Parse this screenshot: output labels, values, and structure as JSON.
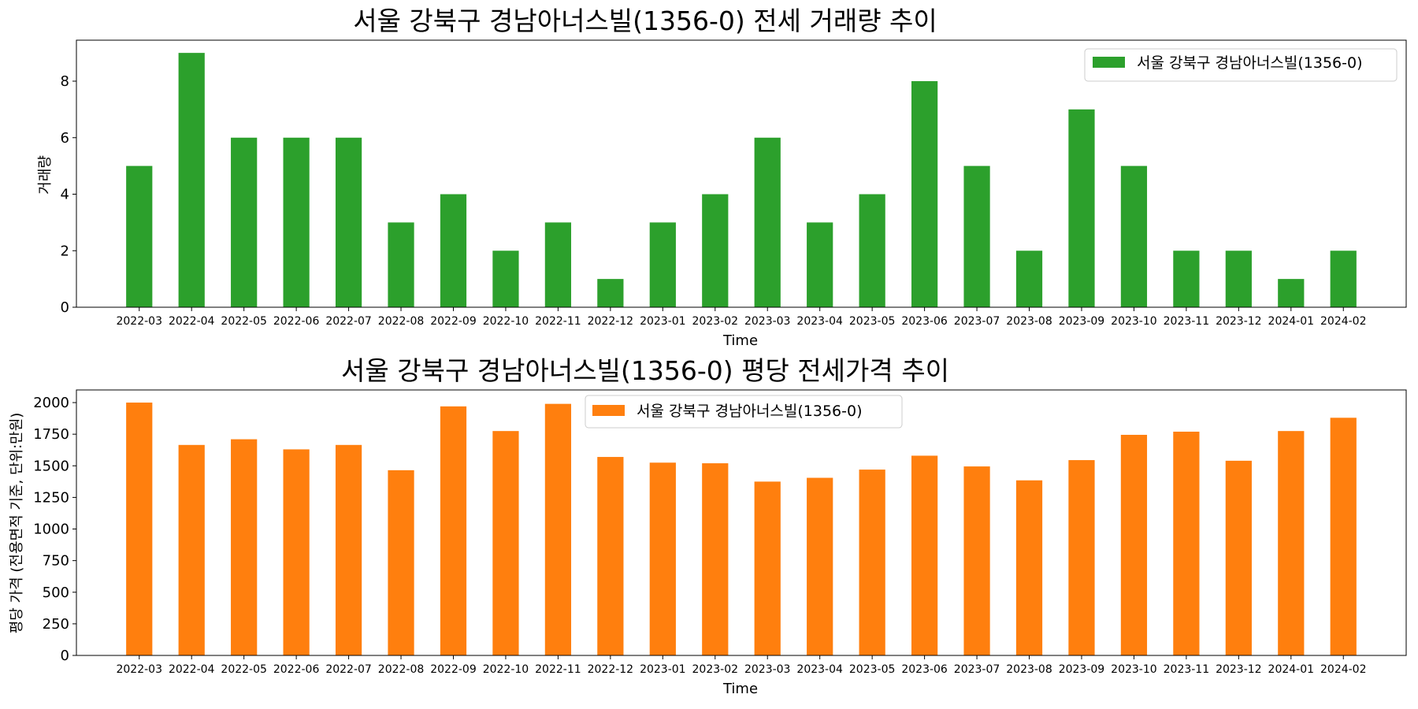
{
  "chart_data": [
    {
      "type": "bar",
      "title": "서울 강북구 경남아너스빌(1356-0) 전세 거래량 추이",
      "xlabel": "Time",
      "ylabel": "거래량",
      "ylim": [
        0,
        9.45
      ],
      "yticks": [
        0,
        2,
        4,
        6,
        8
      ],
      "legend_position": "upper right",
      "categories": [
        "2022-03",
        "2022-04",
        "2022-05",
        "2022-06",
        "2022-07",
        "2022-08",
        "2022-09",
        "2022-10",
        "2022-11",
        "2022-12",
        "2023-01",
        "2023-02",
        "2023-03",
        "2023-04",
        "2023-05",
        "2023-06",
        "2023-07",
        "2023-08",
        "2023-09",
        "2023-10",
        "2023-11",
        "2023-12",
        "2024-01",
        "2024-02"
      ],
      "series": [
        {
          "name": "서울 강북구 경남아너스빌(1356-0)",
          "color": "#2ca02c",
          "values": [
            5,
            9,
            6,
            6,
            6,
            3,
            4,
            2,
            3,
            1,
            3,
            4,
            6,
            3,
            4,
            8,
            5,
            2,
            7,
            5,
            2,
            2,
            1,
            2
          ]
        }
      ]
    },
    {
      "type": "bar",
      "title": "서울 강북구 경남아너스빌(1356-0) 평당 전세가격 추이",
      "xlabel": "Time",
      "ylabel": "평당 가격 (전용면적 기준, 단위:만원)",
      "ylim": [
        0,
        2100
      ],
      "yticks": [
        0,
        250,
        500,
        750,
        1000,
        1250,
        1500,
        1750,
        2000
      ],
      "legend_position": "upper center",
      "categories": [
        "2022-03",
        "2022-04",
        "2022-05",
        "2022-06",
        "2022-07",
        "2022-08",
        "2022-09",
        "2022-10",
        "2022-11",
        "2022-12",
        "2023-01",
        "2023-02",
        "2023-03",
        "2023-04",
        "2023-05",
        "2023-06",
        "2023-07",
        "2023-08",
        "2023-09",
        "2023-10",
        "2023-11",
        "2023-12",
        "2024-01",
        "2024-02"
      ],
      "series": [
        {
          "name": "서울 강북구 경남아너스빌(1356-0)",
          "color": "#ff7f0e",
          "values": [
            2000,
            1665,
            1710,
            1630,
            1665,
            1465,
            1970,
            1775,
            1990,
            1570,
            1525,
            1520,
            1375,
            1405,
            1470,
            1580,
            1495,
            1385,
            1545,
            1745,
            1770,
            1540,
            1775,
            1880
          ]
        }
      ]
    }
  ]
}
